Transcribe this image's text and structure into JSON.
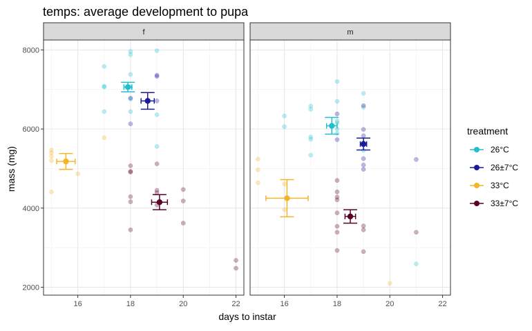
{
  "chart_data": {
    "type": "scatter",
    "title": "temps: average development to pupa",
    "xlabel": "days to instar",
    "ylabel": "mass (mg)",
    "xlim": [
      14.7,
      22.3
    ],
    "ylim": [
      1800,
      8250
    ],
    "xticks": [
      16,
      18,
      20,
      22
    ],
    "yticks": [
      2000,
      4000,
      6000,
      8000
    ],
    "grid": true,
    "legend": {
      "title": "treatment",
      "position": "right"
    },
    "panels": [
      "f",
      "m"
    ],
    "series": [
      {
        "name": "26°C",
        "color": "#1fbfcf",
        "points": {
          "f": [
            [
              17,
              7580
            ],
            [
              17,
              7080
            ],
            [
              17,
              7060
            ],
            [
              17,
              6440
            ],
            [
              18,
              7960
            ],
            [
              18,
              7880
            ],
            [
              18,
              7380
            ],
            [
              18,
              7060
            ],
            [
              18,
              6760
            ],
            [
              18,
              6440
            ],
            [
              19,
              7980
            ],
            [
              19,
              6360
            ],
            [
              19,
              5560
            ]
          ],
          "m": [
            [
              16,
              6330
            ],
            [
              16,
              6060
            ],
            [
              17,
              6580
            ],
            [
              17,
              6500
            ],
            [
              17,
              5800
            ],
            [
              17,
              5740
            ],
            [
              17,
              5340
            ],
            [
              18,
              7200
            ],
            [
              18,
              6700
            ],
            [
              18,
              6200
            ],
            [
              18,
              6150
            ],
            [
              18,
              6000
            ],
            [
              18,
              5890
            ],
            [
              19,
              6900
            ],
            [
              19,
              6550
            ],
            [
              19,
              5650
            ],
            [
              19,
              5460
            ],
            [
              21,
              2590
            ]
          ]
        },
        "mean": {
          "f": {
            "x": 17.9,
            "y": 7060,
            "xerr": 0.15,
            "yerr": 120
          },
          "m": {
            "x": 17.8,
            "y": 6080,
            "xerr": 0.2,
            "yerr": 210
          }
        }
      },
      {
        "name": "26±7°C",
        "color": "#1a1a9a",
        "points": {
          "f": [
            [
              18,
              6780
            ],
            [
              18,
              6130
            ],
            [
              19,
              7360
            ],
            [
              19,
              7330
            ],
            [
              19,
              6710
            ]
          ],
          "m": [
            [
              18,
              6380
            ],
            [
              18,
              5730
            ],
            [
              19,
              6590
            ],
            [
              19,
              5990
            ],
            [
              19,
              5830
            ],
            [
              19,
              5250
            ],
            [
              19,
              5090
            ],
            [
              19,
              4980
            ],
            [
              21,
              5230
            ]
          ]
        },
        "mean": {
          "f": {
            "x": 18.65,
            "y": 6710,
            "xerr": 0.25,
            "yerr": 210
          },
          "m": {
            "x": 19.0,
            "y": 5620,
            "xerr": 0.12,
            "yerr": 150
          }
        }
      },
      {
        "name": "33°C",
        "color": "#f4b428",
        "points": {
          "f": [
            [
              15,
              5470
            ],
            [
              15,
              5400
            ],
            [
              15,
              5310
            ],
            [
              15,
              5200
            ],
            [
              15,
              4410
            ],
            [
              16,
              4870
            ],
            [
              17,
              5780
            ]
          ],
          "m": [
            [
              15,
              5240
            ],
            [
              15,
              4970
            ],
            [
              15,
              4640
            ],
            [
              16,
              4610
            ],
            [
              16,
              3960
            ],
            [
              20,
              2100
            ]
          ]
        },
        "mean": {
          "f": {
            "x": 15.55,
            "y": 5180,
            "xerr": 0.35,
            "yerr": 200
          },
          "m": {
            "x": 16.1,
            "y": 4250,
            "xerr": 0.8,
            "yerr": 470
          }
        }
      },
      {
        "name": "33±7°C",
        "color": "#5a0028",
        "points": {
          "f": [
            [
              18,
              5070
            ],
            [
              18,
              4930
            ],
            [
              18,
              4910
            ],
            [
              18,
              4290
            ],
            [
              18,
              4160
            ],
            [
              18,
              3450
            ],
            [
              19,
              5120
            ],
            [
              19,
              4450
            ],
            [
              19,
              4390
            ],
            [
              19,
              4080
            ],
            [
              20,
              4470
            ],
            [
              20,
              4180
            ],
            [
              20,
              3620
            ],
            [
              22,
              2680
            ],
            [
              22,
              2480
            ]
          ],
          "m": [
            [
              18,
              4700
            ],
            [
              18,
              4410
            ],
            [
              18,
              4280
            ],
            [
              18,
              4210
            ],
            [
              18,
              3880
            ],
            [
              18,
              3540
            ],
            [
              18,
              3390
            ],
            [
              18,
              2930
            ],
            [
              19,
              3550
            ],
            [
              19,
              3450
            ],
            [
              19,
              2900
            ],
            [
              21,
              3390
            ]
          ]
        },
        "mean": {
          "f": {
            "x": 19.1,
            "y": 4150,
            "xerr": 0.3,
            "yerr": 190
          },
          "m": {
            "x": 18.5,
            "y": 3790,
            "xerr": 0.2,
            "yerr": 170
          }
        }
      }
    ]
  }
}
